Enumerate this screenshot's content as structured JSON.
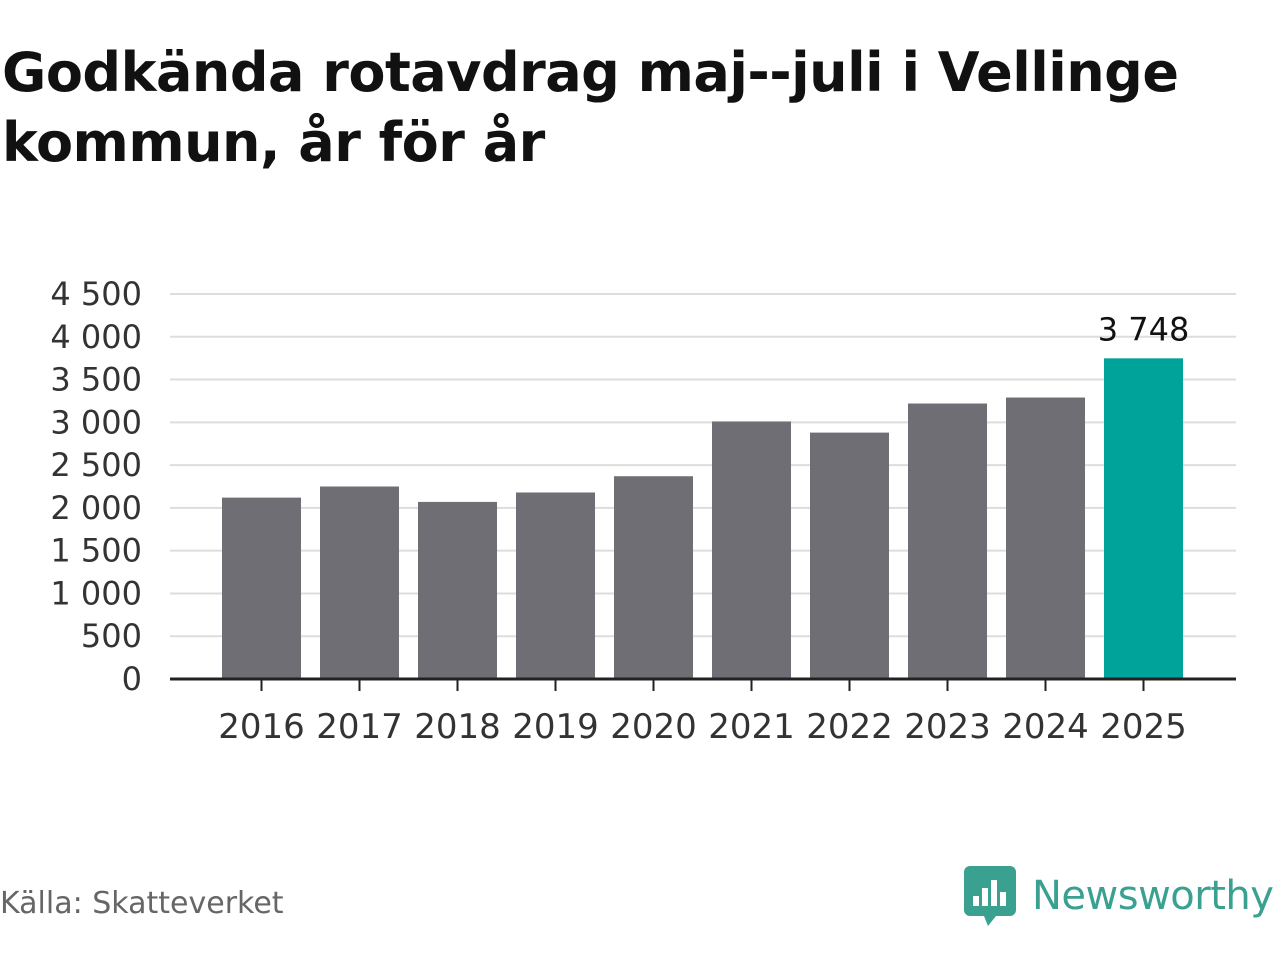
{
  "title": "Godkända rotavdrag maj--juli i Vellinge kommun, år för år",
  "source": "Källa: Skatteverket",
  "brand": {
    "name": "Newsworthy",
    "icon": "newsworthy-logo-icon",
    "color": "#3aa191"
  },
  "chart_data": {
    "type": "bar",
    "categories": [
      "2016",
      "2017",
      "2018",
      "2019",
      "2020",
      "2021",
      "2022",
      "2023",
      "2024",
      "2025"
    ],
    "values": [
      2120,
      2250,
      2070,
      2180,
      2370,
      3010,
      2880,
      3220,
      3290,
      3748
    ],
    "ylim": [
      0,
      4500
    ],
    "yticks": [
      0,
      500,
      1000,
      1500,
      2000,
      2500,
      3000,
      3500,
      4000,
      4500
    ],
    "ytick_labels": [
      "0",
      "500",
      "1 000",
      "1 500",
      "2 000",
      "2 500",
      "3 000",
      "3 500",
      "4 000",
      "4 500"
    ],
    "data_labels": [
      {
        "category": "2025",
        "label": "3 748"
      }
    ],
    "highlight": "2025",
    "colors": {
      "bar": "#6f6e75",
      "highlight": "#00a39a",
      "grid": "#dddddd",
      "axis": "#222222"
    },
    "grid": true,
    "xlabel": "",
    "ylabel": ""
  }
}
